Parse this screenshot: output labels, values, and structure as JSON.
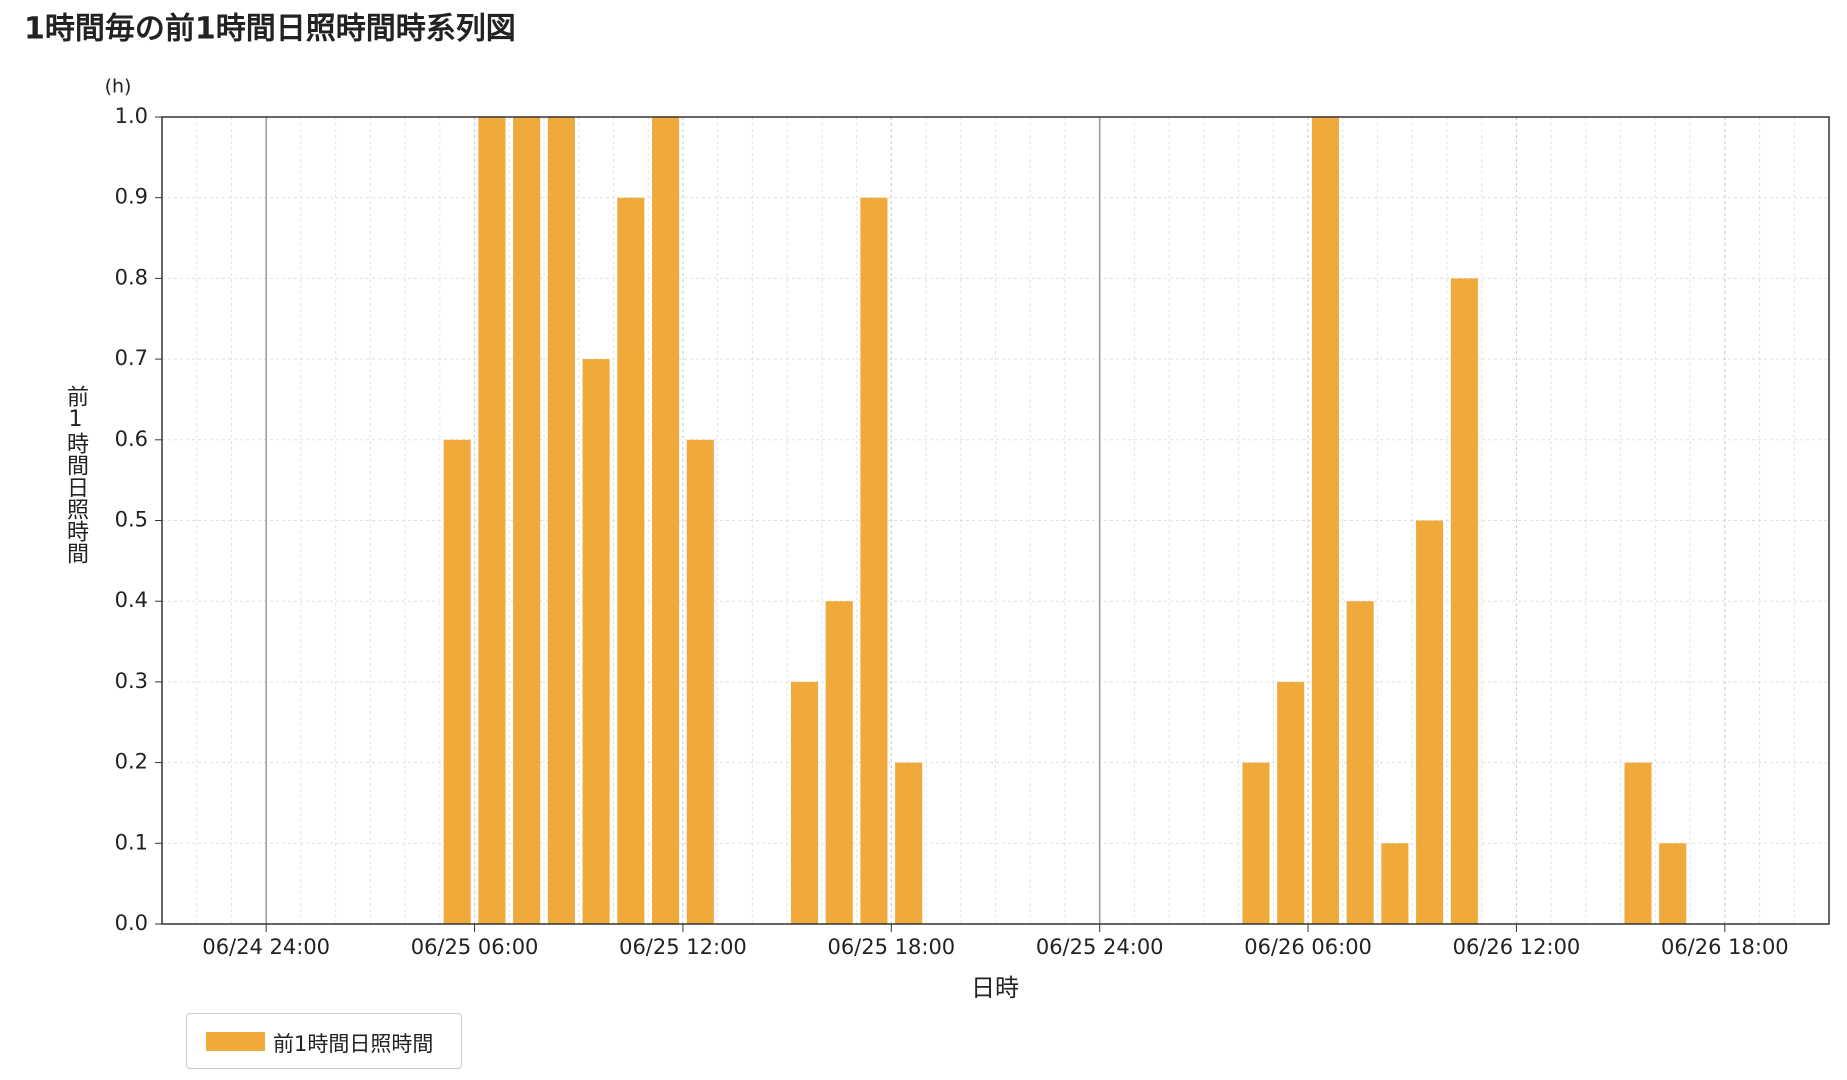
{
  "chart_data": {
    "type": "bar",
    "title": "1時間毎の前1時間日照時間時系列図",
    "y_unit": "(h)",
    "ylabel": "前1時間日照時間",
    "xlabel": "日時",
    "x": [
      "06/25 06:00",
      "06/25 07:00",
      "06/25 08:00",
      "06/25 09:00",
      "06/25 10:00",
      "06/25 11:00",
      "06/25 12:00",
      "06/25 13:00",
      "06/25 16:00",
      "06/25 17:00",
      "06/25 18:00",
      "06/25 19:00",
      "06/26 05:00",
      "06/26 06:00",
      "06/26 07:00",
      "06/26 08:00",
      "06/26 09:00",
      "06/26 10:00",
      "06/26 11:00",
      "06/26 16:00",
      "06/26 17:00"
    ],
    "series": [
      {
        "name": "前1時間日照時間",
        "color": "#f0a93b",
        "values": [
          0.6,
          1.0,
          1.0,
          1.0,
          0.7,
          0.9,
          1.0,
          0.6,
          0.3,
          0.4,
          0.9,
          0.2,
          0.2,
          0.3,
          1.0,
          0.4,
          0.1,
          0.5,
          0.8,
          0.2,
          0.1
        ]
      }
    ],
    "xlim": [
      "06/24 21:00",
      "06/26 21:00"
    ],
    "xticks": [
      "06/24 24:00",
      "06/25 06:00",
      "06/25 12:00",
      "06/25 18:00",
      "06/25 24:00",
      "06/26 06:00",
      "06/26 12:00",
      "06/26 18:00"
    ],
    "ylim": [
      0,
      1
    ],
    "yticks": [
      {
        "value": 0,
        "label": "0.0"
      },
      0.1,
      0.2,
      0.3,
      0.4,
      0.5,
      0.6,
      0.7,
      0.8,
      0.9,
      {
        "value": 1,
        "label": "1.0"
      }
    ],
    "grid": true
  }
}
